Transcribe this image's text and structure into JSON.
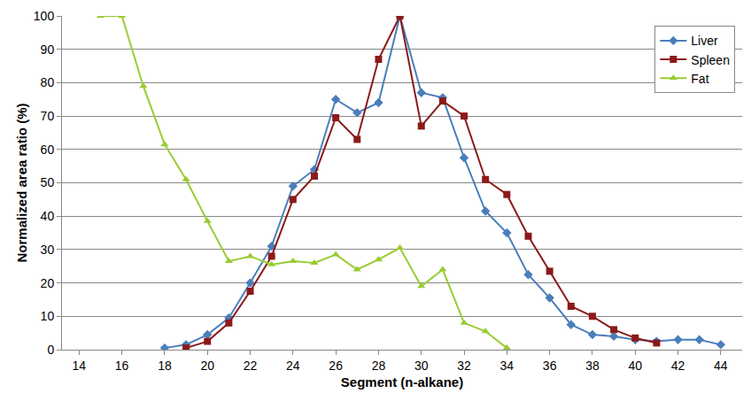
{
  "chart_data": {
    "type": "line",
    "x_label": "Segment (n-alkane)",
    "y_label": "Normalized area ratio (%)",
    "x": [
      15,
      16,
      17,
      18,
      19,
      20,
      21,
      22,
      23,
      24,
      25,
      26,
      27,
      28,
      29,
      30,
      31,
      32,
      33,
      34,
      35,
      36,
      37,
      38,
      39,
      40,
      41,
      42,
      43,
      44
    ],
    "series": [
      {
        "name": "Liver",
        "color": "#4a7ebb",
        "marker": "diamond",
        "values": [
          null,
          null,
          null,
          0.5,
          1.5,
          4.5,
          9.5,
          20,
          31,
          49,
          54,
          75,
          71,
          74,
          100,
          77,
          75.5,
          57.5,
          41.5,
          35,
          22.5,
          15.5,
          7.5,
          4.5,
          4,
          3,
          2.5,
          3,
          3,
          1.5
        ]
      },
      {
        "name": "Spleen",
        "color": "#8b1a1a",
        "marker": "square",
        "values": [
          null,
          null,
          null,
          null,
          0.5,
          2.5,
          8,
          17.5,
          28,
          45,
          52,
          69.5,
          63,
          87,
          100,
          67,
          74.5,
          70,
          51,
          46.5,
          34,
          23.5,
          13,
          10,
          6,
          3.5,
          2,
          null,
          null,
          null
        ]
      },
      {
        "name": "Fat",
        "color": "#99cc33",
        "marker": "triangle-up",
        "values": [
          100,
          100,
          79,
          61.5,
          51,
          38.5,
          26.5,
          28,
          25.5,
          26.5,
          26,
          28.5,
          24,
          27,
          30.5,
          19,
          24,
          8,
          5.5,
          0.5,
          null,
          null,
          null,
          null,
          null,
          null,
          null,
          null,
          null,
          null
        ]
      }
    ],
    "xlim": [
      13.2,
      45
    ],
    "xticks": [
      14,
      16,
      18,
      20,
      22,
      24,
      26,
      28,
      30,
      32,
      34,
      36,
      38,
      40,
      42,
      44
    ],
    "ylim": [
      0,
      100
    ],
    "yticks": [
      0,
      10,
      20,
      30,
      40,
      50,
      60,
      70,
      80,
      90,
      100
    ],
    "grid": true,
    "legend": "upper right"
  }
}
